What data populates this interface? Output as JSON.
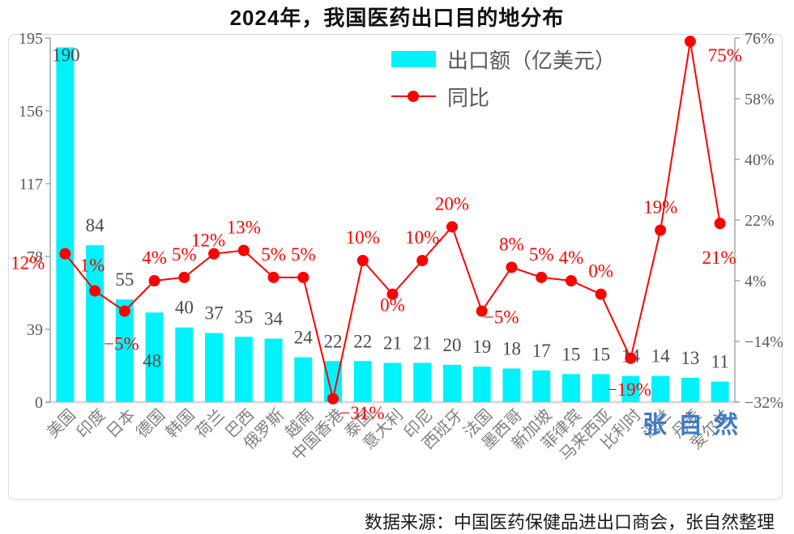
{
  "title": "2024年，我国医药出口目的地分布",
  "footer": "数据来源：中国医药保健品进出口商会，张自然整理",
  "watermark": "张自然",
  "legend": {
    "bar_label": "出口额（亿美元）",
    "line_label": "同比"
  },
  "colors": {
    "bar": "#00f2fa",
    "line": "#fe0000",
    "pct_label": "#fe0000",
    "bar_value_label": "#4a4a4a",
    "axis_line": "#a6a6a6",
    "baseline": "#d9d9d9",
    "axis_tick_label": "#595959",
    "x_label": "#808080",
    "watermark": "#3e7bc8"
  },
  "chart_data": {
    "type": "bar",
    "subtype": "bar+line combo, dual axis",
    "title": "2024年，我国医药出口目的地分布",
    "categories": [
      "美国",
      "印度",
      "日本",
      "德国",
      "韩国",
      "荷兰",
      "巴西",
      "俄罗斯",
      "越南",
      "中国香港",
      "泰国",
      "意大利",
      "印尼",
      "西班牙",
      "法国",
      "墨西哥",
      "新加坡",
      "菲律宾",
      "马来西亚",
      "比利时",
      "波兰",
      "丹麦",
      "爱尔兰"
    ],
    "series": [
      {
        "name": "出口额（亿美元）",
        "type": "bar",
        "axis": "left",
        "values": [
          190,
          84,
          55,
          48,
          40,
          37,
          35,
          34,
          24,
          22,
          22,
          21,
          21,
          20,
          19,
          18,
          17,
          15,
          15,
          14,
          14,
          13,
          11
        ]
      },
      {
        "name": "同比",
        "type": "line",
        "axis": "right",
        "values": [
          12,
          1,
          -5,
          4,
          5,
          12,
          13,
          5,
          5,
          -31,
          10,
          0,
          10,
          20,
          -5,
          8,
          5,
          4,
          0,
          -19,
          19,
          75,
          21
        ],
        "labels": [
          "12%",
          "1%",
          "−5%",
          "4%",
          "5%",
          "12%",
          "13%",
          "5%",
          "5%",
          "−31%",
          "10%",
          "0%",
          "10%",
          "20%",
          "−5%",
          "8%",
          "5%",
          "4%",
          "0%",
          "−19%",
          "19%",
          "75%",
          "21%"
        ]
      }
    ],
    "left_axis": {
      "range": [
        0,
        195
      ],
      "tick_values": [
        0,
        39,
        78,
        117,
        156,
        195
      ],
      "tick_labels": [
        "0",
        "39",
        "78",
        "117",
        "156",
        "195"
      ]
    },
    "right_axis": {
      "range": [
        -32,
        76
      ],
      "tick_values": [
        -32,
        -14,
        4,
        22,
        40,
        58,
        76
      ],
      "tick_labels": [
        "−32%",
        "−14%",
        "4%",
        "22%",
        "40%",
        "58%",
        "76%"
      ]
    },
    "grid": false,
    "legend_position": "top-center",
    "layout_hints": {
      "bar_label_default_dy": -25,
      "bar_label_overrides": {
        "0": {
          "dx": 1,
          "dy": 9
        },
        "3": {
          "dx": -3,
          "dy": 59
        }
      },
      "pct_label_default_dy": -29,
      "pct_label_overrides": {
        "0": {
          "dx": -46,
          "dy": 11
        },
        "1": {
          "dx": -3,
          "dy": -32
        },
        "2": {
          "dx": -4,
          "dy": 40
        },
        "5": {
          "dx": -7,
          "dy": -17
        },
        "9": {
          "dx": 36,
          "dy": 17
        },
        "11": {
          "dx": 0,
          "dy": 13
        },
        "14": {
          "dx": 24,
          "dy": 7
        },
        "19": {
          "dx": -2,
          "dy": 38
        },
        "21": {
          "dx": 43,
          "dy": 17
        },
        "22": {
          "dx": -1,
          "dy": 42
        }
      }
    }
  }
}
